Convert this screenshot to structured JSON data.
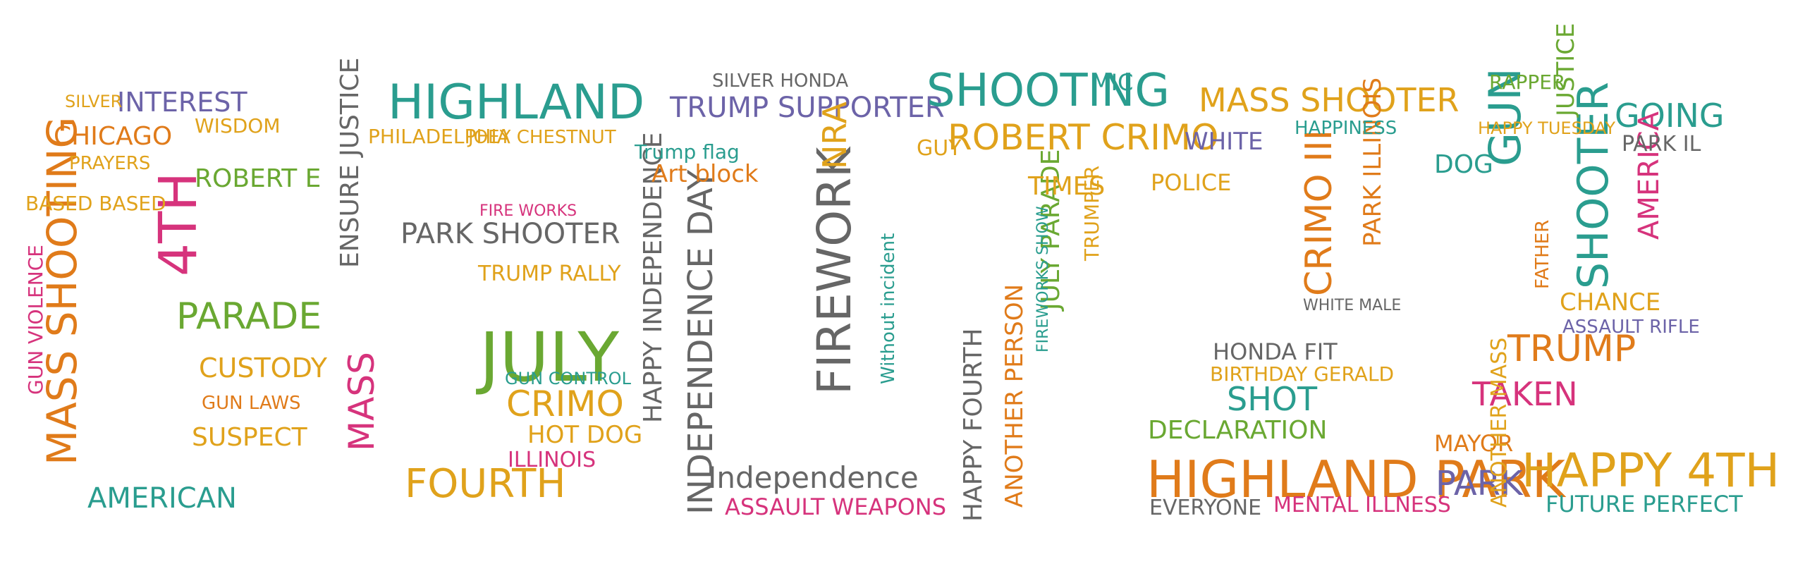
{
  "palette": {
    "teal": "#2a9d8f",
    "orange": "#e07b1a",
    "gold": "#e0a21b",
    "green": "#6aa832",
    "magenta": "#d6337c",
    "purple": "#6c63a8",
    "gray": "#666666"
  },
  "words": {
    "w01": {
      "text": "MASS SHOOTING",
      "color": "#e07b1a"
    },
    "w02": {
      "text": "4TH",
      "color": "#d6337c"
    },
    "w03": {
      "text": "PARADE",
      "color": "#6aa832"
    },
    "w04": {
      "text": "AMERICAN",
      "color": "#2a9d8f"
    },
    "w05": {
      "text": "CHICAGO",
      "color": "#e07b1a"
    },
    "w06": {
      "text": "INTEREST",
      "color": "#6c63a8"
    },
    "w07": {
      "text": "GUN VIOLENCE",
      "color": "#d6337c"
    },
    "w08": {
      "text": "ROBERT E",
      "color": "#6aa832"
    },
    "w09": {
      "text": "CUSTODY",
      "color": "#e0a21b"
    },
    "w10": {
      "text": "SUSPECT",
      "color": "#e0a21b"
    },
    "w11": {
      "text": "BASED BASED",
      "color": "#e0a21b"
    },
    "w12": {
      "text": "GUN LAWS",
      "color": "#e07b1a"
    },
    "w13": {
      "text": "WISDOM",
      "color": "#e0a21b"
    },
    "w14": {
      "text": "PRAYERS",
      "color": "#e0a21b"
    },
    "w15": {
      "text": "SILVER",
      "color": "#e0a21b"
    },
    "w16": {
      "text": "HIGHLAND",
      "color": "#2a9d8f"
    },
    "w17": {
      "text": "JULY",
      "color": "#6aa832"
    },
    "w18": {
      "text": "FOURTH",
      "color": "#e0a21b"
    },
    "w19": {
      "text": "CRIMO",
      "color": "#e0a21b"
    },
    "w20": {
      "text": "MASS",
      "color": "#d6337c"
    },
    "w21": {
      "text": "PARK SHOOTER",
      "color": "#666666"
    },
    "w22": {
      "text": "ENSURE JUSTICE",
      "color": "#666666"
    },
    "w23": {
      "text": "PHILADELPHIA",
      "color": "#e0a21b"
    },
    "w24": {
      "text": "JOEY CHESTNUT",
      "color": "#e0a21b"
    },
    "w25": {
      "text": "TRUMP RALLY",
      "color": "#e0a21b"
    },
    "w26": {
      "text": "HOT DOG",
      "color": "#e0a21b"
    },
    "w27": {
      "text": "ILLINOIS",
      "color": "#d6337c"
    },
    "w28": {
      "text": "GUN CONTROL",
      "color": "#2a9d8f"
    },
    "w29": {
      "text": "FIRE WORKS",
      "color": "#d6337c"
    },
    "w30": {
      "text": "FIREWORK",
      "color": "#666666"
    },
    "w31": {
      "text": "INDEPENDENCE DAY",
      "color": "#666666"
    },
    "w32": {
      "text": "HAPPY INDEPENDENCE",
      "color": "#666666"
    },
    "w33": {
      "text": "TRUMP SUPPORTER",
      "color": "#6c63a8"
    },
    "w34": {
      "text": "Independence",
      "color": "#666666"
    },
    "w35": {
      "text": "ASSAULT WEAPONS",
      "color": "#d6337c"
    },
    "w36": {
      "text": "SILVER HONDA",
      "color": "#666666"
    },
    "w37": {
      "text": "Trump flag",
      "color": "#2a9d8f"
    },
    "w38": {
      "text": "Art block",
      "color": "#e07b1a"
    },
    "w39": {
      "text": "NRA",
      "color": "#e0a21b"
    },
    "w40": {
      "text": "Without incident",
      "color": "#2a9d8f"
    },
    "w41": {
      "text": "SHOOTING",
      "color": "#2a9d8f"
    },
    "w42": {
      "text": "ROBERT CRIMO",
      "color": "#e0a21b"
    },
    "w43": {
      "text": "HAPPY FOURTH",
      "color": "#666666"
    },
    "w44": {
      "text": "JULY PARADE",
      "color": "#6aa832"
    },
    "w45": {
      "text": "ANOTHER PERSON",
      "color": "#e07b1a"
    },
    "w46": {
      "text": "FIREWORKS SHOW",
      "color": "#2a9d8f"
    },
    "w47": {
      "text": "TIMES",
      "color": "#e0a21b"
    },
    "w48": {
      "text": "MIC",
      "color": "#2a9d8f"
    },
    "w49": {
      "text": "GUY",
      "color": "#e0a21b"
    },
    "w50": {
      "text": "TRUMPER",
      "color": "#e0a21b"
    },
    "w51": {
      "text": "HIGHLAND PARK",
      "color": "#e07b1a"
    },
    "w52": {
      "text": "MASS SHOOTER",
      "color": "#e0a21b"
    },
    "w53": {
      "text": "DECLARATION",
      "color": "#6aa832"
    },
    "w54": {
      "text": "SHOT",
      "color": "#2a9d8f"
    },
    "w55": {
      "text": "MENTAL ILLNESS",
      "color": "#d6337c"
    },
    "w56": {
      "text": "EVERYONE",
      "color": "#666666"
    },
    "w57": {
      "text": "CRIMO III",
      "color": "#e07b1a"
    },
    "w58": {
      "text": "PARK ILLINOIS",
      "color": "#e07b1a"
    },
    "w59": {
      "text": "POLICE",
      "color": "#e0a21b"
    },
    "w60": {
      "text": "WHITE",
      "color": "#6c63a8"
    },
    "w61": {
      "text": "HONDA FIT",
      "color": "#666666"
    },
    "w62": {
      "text": "BIRTHDAY GERALD",
      "color": "#e0a21b"
    },
    "w63": {
      "text": "HAPPINESS",
      "color": "#2a9d8f"
    },
    "w64": {
      "text": "WHITE MALE",
      "color": "#666666"
    },
    "w65": {
      "text": "SHOOTER",
      "color": "#2a9d8f"
    },
    "w66": {
      "text": "HAPPY 4TH",
      "color": "#e0a21b"
    },
    "w67": {
      "text": "TRUMP",
      "color": "#e07b1a"
    },
    "w68": {
      "text": "GUN",
      "color": "#2a9d8f"
    },
    "w69": {
      "text": "GOING",
      "color": "#2a9d8f"
    },
    "w70": {
      "text": "FUTURE PERFECT",
      "color": "#2a9d8f"
    },
    "w71": {
      "text": "PARK",
      "color": "#6c63a8"
    },
    "w72": {
      "text": "MAYOR",
      "color": "#e07b1a"
    },
    "w73": {
      "text": "TAKEN",
      "color": "#d6337c"
    },
    "w74": {
      "text": "AMERICA",
      "color": "#d6337c"
    },
    "w75": {
      "text": "JUSTICE",
      "color": "#6aa832"
    },
    "w76": {
      "text": "CHANCE",
      "color": "#e0a21b"
    },
    "w77": {
      "text": "DOG",
      "color": "#2a9d8f"
    },
    "w78": {
      "text": "ANOTHER MASS",
      "color": "#e0a21b"
    },
    "w79": {
      "text": "RAPPER",
      "color": "#6aa832"
    },
    "w80": {
      "text": "PARK IL",
      "color": "#666666"
    },
    "w81": {
      "text": "ASSAULT RIFLE",
      "color": "#6c63a8"
    },
    "w82": {
      "text": "HAPPY TUESDAY",
      "color": "#e0a21b"
    },
    "w83": {
      "text": "FATHER",
      "color": "#e07b1a"
    }
  }
}
